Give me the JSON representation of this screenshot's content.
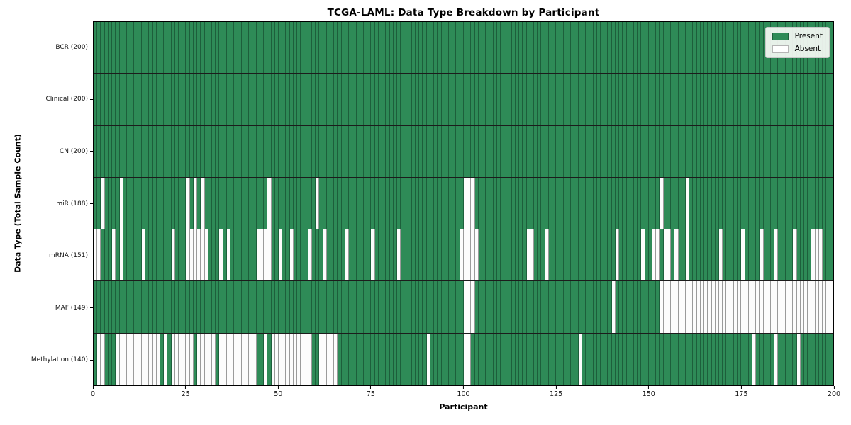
{
  "figure": {
    "title": "TCGA-LAML: Data Type Breakdown by Participant"
  },
  "chart_data": {
    "type": "heatmap",
    "title": "TCGA-LAML: Data Type Breakdown by Participant",
    "xlabel": "Participant",
    "ylabel": "Data Type (Total Sample Count)",
    "x_range": [
      0,
      200
    ],
    "x_ticks": [
      0,
      25,
      50,
      75,
      100,
      125,
      150,
      175,
      200
    ],
    "n_participants": 200,
    "grid": false,
    "legend": {
      "position": "upper right",
      "entries": [
        {
          "label": "Present",
          "state": "present",
          "color": "#2e8b57"
        },
        {
          "label": "Absent",
          "state": "absent",
          "color": "#ffffff"
        }
      ]
    },
    "colors": {
      "present": "#2e8b57",
      "absent": "#ffffff",
      "present_edge": "#1e5c3a",
      "absent_edge": "#9b9b9b",
      "row_divider": "#1c1c1c",
      "frame": "#000000"
    },
    "rows": [
      {
        "label": "BCR (200)",
        "data_type": "BCR",
        "present_count": 200,
        "absent_participants": []
      },
      {
        "label": "Clinical (200)",
        "data_type": "Clinical",
        "present_count": 200,
        "absent_participants": []
      },
      {
        "label": "CN (200)",
        "data_type": "CN",
        "present_count": 200,
        "absent_participants": []
      },
      {
        "label": "miR (188)",
        "data_type": "miR",
        "present_count": 188,
        "absent_participants": [
          2,
          7,
          25,
          27,
          29,
          47,
          60,
          100,
          101,
          102,
          153,
          160
        ]
      },
      {
        "label": "mRNA (151)",
        "data_type": "mRNA",
        "present_count": 151,
        "absent_participants": [
          0,
          1,
          5,
          7,
          13,
          21,
          25,
          26,
          27,
          28,
          29,
          30,
          34,
          36,
          44,
          45,
          46,
          47,
          50,
          53,
          58,
          62,
          68,
          75,
          82,
          99,
          100,
          101,
          102,
          103,
          117,
          118,
          122,
          141,
          148,
          151,
          152,
          154,
          155,
          157,
          160,
          169,
          175,
          180,
          184,
          189,
          194,
          195,
          196
        ]
      },
      {
        "label": "MAF (149)",
        "data_type": "MAF",
        "present_count": 149,
        "absent_participants": [
          100,
          101,
          102,
          140,
          153,
          154,
          155,
          156,
          157,
          158,
          159,
          160,
          161,
          162,
          163,
          164,
          165,
          166,
          167,
          168,
          169,
          170,
          171,
          172,
          173,
          174,
          175,
          176,
          177,
          178,
          179,
          180,
          181,
          182,
          183,
          184,
          185,
          186,
          187,
          188,
          189,
          190,
          191,
          192,
          193,
          194,
          195,
          196,
          197,
          198,
          199
        ]
      },
      {
        "label": "Methylation (140)",
        "data_type": "Methylation",
        "present_count": 140,
        "absent_participants": [
          1,
          2,
          6,
          7,
          8,
          9,
          10,
          11,
          12,
          13,
          14,
          15,
          16,
          17,
          19,
          21,
          22,
          23,
          24,
          25,
          26,
          28,
          29,
          30,
          31,
          32,
          34,
          35,
          36,
          37,
          38,
          39,
          40,
          41,
          42,
          43,
          46,
          48,
          49,
          50,
          51,
          52,
          53,
          54,
          55,
          56,
          57,
          58,
          61,
          62,
          63,
          64,
          65,
          90,
          100,
          101,
          131,
          178,
          184,
          190
        ]
      }
    ]
  }
}
